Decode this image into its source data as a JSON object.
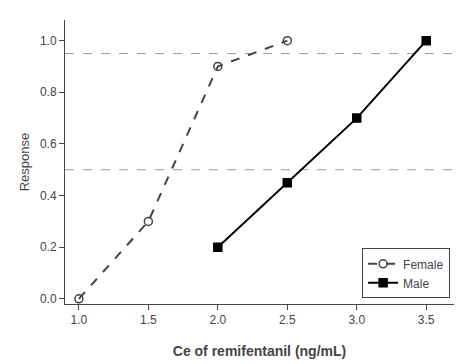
{
  "chart_data": {
    "type": "line",
    "xlabel": "Ce of remifentanil (ng/mL)",
    "ylabel": "Response",
    "series": [
      {
        "name": "Female",
        "color": "#444444",
        "marker": "open circle",
        "line_style": "dashed",
        "x": [
          1.0,
          1.5,
          2.0,
          2.5
        ],
        "values": [
          0.0,
          0.3,
          0.9,
          1.0
        ]
      },
      {
        "name": "Male",
        "color": "#000000",
        "marker": "square",
        "line_style": "solid",
        "x": [
          2.0,
          2.5,
          3.0,
          3.5
        ],
        "values": [
          0.2,
          0.45,
          0.7,
          1.0
        ]
      }
    ],
    "reference_lines": {
      "values": [
        0.5,
        0.95
      ],
      "color": "#999999",
      "line_style": "dashed"
    },
    "xlim": [
      0.9,
      3.7
    ],
    "xticks": [
      {
        "value": 1.0,
        "label": "1.0"
      },
      1.5,
      {
        "value": 2.0,
        "label": "2.0"
      },
      2.5,
      {
        "value": 3.0,
        "label": "3.0"
      },
      3.5
    ],
    "ylim": [
      -0.02,
      1.08
    ],
    "yticks": [
      {
        "value": 0.0,
        "label": "0.0"
      },
      0.2,
      0.4,
      0.6,
      0.8,
      {
        "value": 1.0,
        "label": "1.0"
      }
    ],
    "grid": false,
    "legend": "lower right"
  }
}
